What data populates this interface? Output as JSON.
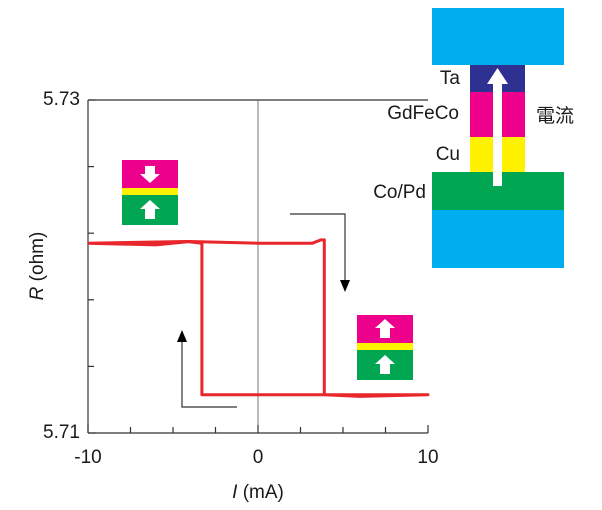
{
  "chart_data": {
    "type": "line",
    "xlabel_var": "I",
    "xlabel_unit": "(mA)",
    "ylabel_var": "R",
    "ylabel_unit": "(ohm)",
    "xlim": [
      -10,
      10
    ],
    "xticks": [
      -10,
      0,
      10
    ],
    "xminorticks": [
      -7.5,
      -5,
      -2.5,
      2.5,
      5,
      7.5
    ],
    "ylim": [
      5.71,
      5.73
    ],
    "yticks": [
      5.71,
      5.73
    ],
    "yminorticks": [
      5.714,
      5.718,
      5.722,
      5.726
    ],
    "zero_line": true,
    "series": [
      {
        "color": "#e8262b",
        "x": [
          -10,
          -6,
          -4,
          0,
          3.2,
          3.7,
          3.9,
          3.9,
          6,
          10,
          0,
          -3.1,
          -3.3,
          -3.3,
          -4.2,
          -10
        ],
        "values": [
          5.7214,
          5.7213,
          5.7215,
          5.7214,
          5.7214,
          5.7216,
          5.7216,
          5.7123,
          5.7122,
          5.7123,
          5.7123,
          5.7123,
          5.7123,
          5.7214,
          5.7215,
          5.7214
        ]
      }
    ],
    "annotations": {
      "ta": "Ta",
      "gdfeco": "GdFeCo",
      "cu": "Cu",
      "copd": "Co/Pd",
      "current": "電流"
    }
  }
}
